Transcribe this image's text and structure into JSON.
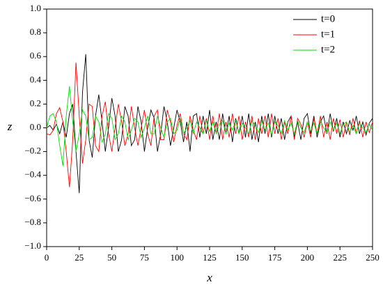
{
  "chart_data": {
    "type": "line",
    "xlabel": "x",
    "ylabel": "z",
    "xlim": [
      0,
      250
    ],
    "ylim": [
      -1.0,
      1.0
    ],
    "xticks": [
      0,
      25,
      50,
      75,
      100,
      125,
      150,
      175,
      200,
      225,
      250
    ],
    "yticks": [
      {
        "value": -1.0,
        "label": "−1.0"
      },
      {
        "value": -0.8,
        "label": "−0.8"
      },
      {
        "value": -0.6,
        "label": "−0.6"
      },
      {
        "value": -0.4,
        "label": "−0.4"
      },
      {
        "value": -0.2,
        "label": "−0.2"
      },
      {
        "value": 0,
        "label": "0.0"
      },
      {
        "value": 0.2,
        "label": "0.2"
      },
      {
        "value": 0.4,
        "label": "0.4"
      },
      {
        "value": 0.6,
        "label": "0.6"
      },
      {
        "value": 0.8,
        "label": "0.8"
      },
      {
        "value": 1.0,
        "label": "1.0"
      }
    ],
    "legend": "upper right",
    "x": [
      0,
      2.5,
      5,
      7.5,
      10,
      12.5,
      15,
      17.5,
      20,
      22.5,
      25,
      27.5,
      30,
      32.5,
      35,
      37.5,
      40,
      42.5,
      45,
      47.5,
      50,
      52.5,
      55,
      57.5,
      60,
      62.5,
      65,
      67.5,
      70,
      72.5,
      75,
      77.5,
      80,
      82.5,
      85,
      87.5,
      90,
      92.5,
      95,
      97.5,
      100,
      102.5,
      105,
      107.5,
      110,
      112.5,
      115,
      117.5,
      120,
      122.5,
      125,
      127.5,
      130,
      132.5,
      135,
      137.5,
      140,
      142.5,
      145,
      147.5,
      150,
      152.5,
      155,
      157.5,
      160,
      162.5,
      165,
      167.5,
      170,
      172.5,
      175,
      177.5,
      180,
      182.5,
      185,
      187.5,
      190,
      192.5,
      195,
      197.5,
      200,
      202.5,
      205,
      207.5,
      210,
      212.5,
      215,
      217.5,
      220,
      222.5,
      225,
      227.5,
      230,
      232.5,
      235,
      237.5,
      240,
      242.5,
      245,
      247.5,
      250
    ],
    "series": [
      {
        "name": "t=0",
        "color": "#000000",
        "values": [
          0.0,
          0.02,
          -0.02,
          0.03,
          -0.05,
          0.05,
          -0.08,
          0.12,
          0.2,
          -0.2,
          -0.55,
          0.3,
          0.62,
          -0.1,
          -0.25,
          0.1,
          0.28,
          0.05,
          -0.2,
          0.0,
          0.25,
          0.1,
          -0.2,
          -0.1,
          0.18,
          0.1,
          -0.15,
          -0.1,
          0.18,
          0.05,
          -0.2,
          0.0,
          0.15,
          0.08,
          -0.2,
          -0.05,
          0.18,
          0.05,
          -0.15,
          0.0,
          0.15,
          0.05,
          -0.12,
          0.05,
          -0.2,
          0.1,
          0.12,
          -0.08,
          0.1,
          -0.05,
          0.15,
          -0.1,
          0.05,
          -0.1,
          0.12,
          -0.05,
          0.1,
          -0.12,
          0.08,
          -0.05,
          0.1,
          -0.08,
          0.12,
          -0.1,
          0.05,
          -0.12,
          0.1,
          -0.05,
          0.12,
          -0.08,
          0.1,
          -0.05,
          0.08,
          -0.1,
          0.05,
          0.1,
          -0.08,
          0.05,
          -0.1,
          0.08,
          0.12,
          -0.05,
          0.1,
          -0.08,
          0.05,
          0.1,
          -0.05,
          0.12,
          -0.03,
          0.08,
          -0.08,
          0.05,
          -0.05,
          0.06,
          -0.02,
          0.1,
          -0.05,
          0.05,
          -0.06,
          0.04,
          0.08
        ]
      },
      {
        "name": "t=1",
        "color": "#ff0000",
        "values": [
          -0.05,
          -0.06,
          -0.02,
          0.12,
          0.17,
          0.05,
          -0.2,
          -0.5,
          -0.1,
          0.55,
          0.1,
          -0.3,
          -0.1,
          0.2,
          0.18,
          -0.15,
          -0.2,
          0.1,
          0.22,
          -0.05,
          -0.2,
          0.0,
          0.2,
          0.05,
          -0.15,
          -0.05,
          0.18,
          0.0,
          -0.15,
          0.0,
          0.15,
          -0.05,
          -0.15,
          0.1,
          0.15,
          -0.1,
          -0.1,
          0.15,
          0.05,
          -0.12,
          0.02,
          0.12,
          -0.05,
          -0.1,
          0.1,
          -0.02,
          -0.1,
          0.1,
          -0.05,
          0.08,
          -0.1,
          0.1,
          -0.05,
          0.12,
          -0.1,
          0.05,
          -0.08,
          0.12,
          -0.05,
          0.1,
          -0.1,
          0.05,
          -0.08,
          0.1,
          -0.1,
          0.08,
          -0.05,
          0.1,
          -0.08,
          0.12,
          -0.05,
          0.08,
          -0.1,
          0.05,
          -0.05,
          0.1,
          -0.1,
          0.08,
          0.03,
          -0.08,
          0.05,
          -0.08,
          0.08,
          -0.05,
          0.1,
          -0.08,
          0.05,
          -0.1,
          0.08,
          -0.05,
          0.07,
          -0.08,
          0.05,
          -0.06,
          0.08,
          -0.05,
          0.06,
          -0.08,
          0.05,
          -0.04,
          0.05
        ]
      },
      {
        "name": "t=2",
        "color": "#00dd00",
        "values": [
          0.0,
          0.1,
          0.12,
          0.05,
          -0.15,
          -0.32,
          0.1,
          0.35,
          0.05,
          -0.2,
          -0.05,
          0.15,
          0.1,
          -0.1,
          -0.08,
          0.1,
          0.05,
          -0.12,
          -0.05,
          0.12,
          0.08,
          -0.1,
          -0.05,
          0.1,
          0.05,
          -0.1,
          -0.02,
          0.08,
          0.05,
          -0.08,
          0.0,
          0.1,
          -0.05,
          -0.05,
          0.1,
          0.0,
          -0.08,
          0.05,
          0.08,
          -0.05,
          -0.02,
          0.08,
          -0.05,
          0.0,
          0.06,
          -0.05,
          0.05,
          0.0,
          -0.05,
          0.06,
          -0.03,
          0.05,
          -0.05,
          0.03,
          0.06,
          -0.05,
          0.04,
          -0.02,
          0.06,
          -0.05,
          0.04,
          0.0,
          -0.05,
          0.06,
          0.02,
          -0.04,
          0.06,
          -0.02,
          0.04,
          -0.06,
          0.05,
          0.02,
          -0.05,
          0.06,
          -0.02,
          0.04,
          -0.05,
          0.06,
          0.0,
          -0.04,
          0.05,
          -0.03,
          0.04,
          -0.05,
          0.06,
          0.0,
          -0.04,
          0.05,
          -0.02,
          0.04,
          -0.05,
          0.03,
          0.05,
          -0.04,
          0.02,
          -0.05,
          0.04,
          0.0,
          -0.04,
          0.03,
          -0.02
        ]
      }
    ]
  }
}
